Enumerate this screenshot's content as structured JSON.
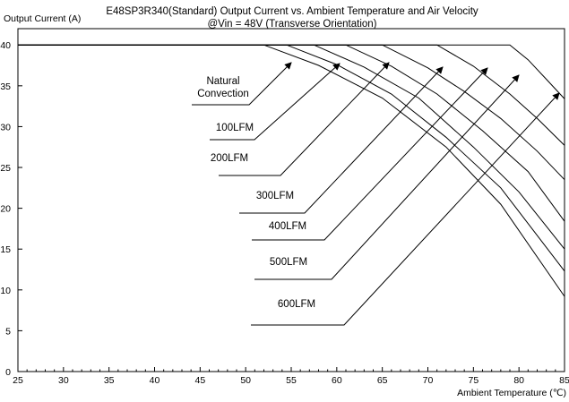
{
  "chart_data": {
    "type": "line",
    "title": "E48SP3R340(Standard)  Output Current vs. Ambient Temperature and Air Velocity",
    "subtitle": "@Vin = 48V (Transverse Orientation)",
    "ylabel": "Output Current (A)",
    "xlabel": "Ambient Temperature (℃)",
    "xlim": [
      25,
      85
    ],
    "ylim": [
      0,
      42
    ],
    "xticks": [
      25,
      30,
      35,
      40,
      45,
      50,
      55,
      60,
      65,
      70,
      75,
      80,
      85
    ],
    "yticks": [
      0,
      5,
      10,
      15,
      20,
      25,
      30,
      35,
      40
    ],
    "grid": false,
    "legend": "none",
    "series": [
      {
        "name": "Natural\nConvection",
        "x": [
          25,
          52,
          58,
          65,
          72,
          78,
          85
        ],
        "y": [
          40,
          40,
          37.5,
          33.5,
          27.5,
          20.5,
          9.2
        ]
      },
      {
        "name": "100LFM",
        "x": [
          25,
          54.5,
          60,
          66,
          72,
          78,
          85
        ],
        "y": [
          40,
          40,
          37.6,
          34,
          28.7,
          22.5,
          12.3
        ]
      },
      {
        "name": "200LFM",
        "x": [
          25,
          57.5,
          63,
          69,
          75,
          80,
          85
        ],
        "y": [
          40,
          40,
          37.3,
          33.5,
          27.5,
          22,
          15
        ]
      },
      {
        "name": "300LFM",
        "x": [
          25,
          61,
          66,
          71,
          76,
          81,
          85
        ],
        "y": [
          40,
          40,
          37.4,
          34,
          29.5,
          24.5,
          18.4
        ]
      },
      {
        "name": "400LFM",
        "x": [
          25,
          65,
          70,
          74,
          78,
          82,
          85
        ],
        "y": [
          40,
          40,
          37.2,
          34.3,
          31,
          27,
          23.5
        ]
      },
      {
        "name": "500LFM",
        "x": [
          25,
          71,
          75,
          79,
          82,
          85
        ],
        "y": [
          40,
          40,
          37.4,
          34,
          31,
          27.7
        ]
      },
      {
        "name": "600LFM",
        "x": [
          25,
          79,
          81,
          83,
          85
        ],
        "y": [
          40,
          40,
          38.2,
          35.8,
          33.4
        ]
      }
    ]
  }
}
